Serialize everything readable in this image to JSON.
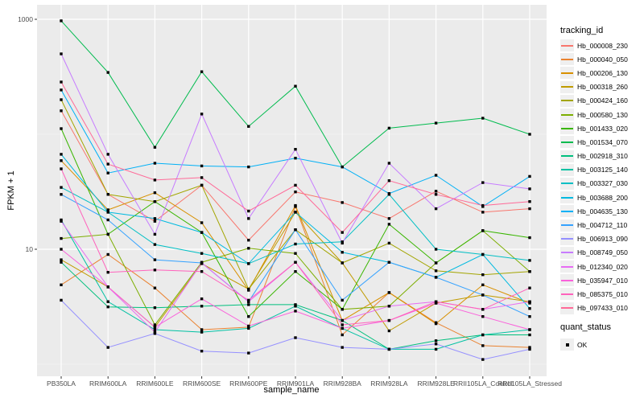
{
  "chart_data": {
    "type": "line",
    "title": "",
    "xlabel": "sample_name",
    "ylabel": "FPKM + 1",
    "y_scale": "log10",
    "ylim": [
      0.79,
      1340
    ],
    "grid": true,
    "legend_position": "right",
    "legend_title": "tracking_id",
    "x_categories": [
      "PB350LA",
      "RRIM600LA",
      "RRIM600LE",
      "RRIM600SE",
      "RRIM600PE",
      "RRIM901LA",
      "RRIM928BA",
      "RRIM928LA",
      "RRIM928LE",
      "RRII105LA_Control",
      "RRII105LA_Stressed"
    ],
    "y_ticks": [
      {
        "label": "1000",
        "value": 1000
      },
      {
        "label": "10",
        "value": 10
      }
    ],
    "y_minor_gridlines": [
      100,
      1
    ],
    "point_marker": "small-black-square",
    "point_color": "#000000",
    "series": [
      {
        "name": "Hb_000008_230",
        "color": "#F8766D",
        "values": [
          160,
          30,
          17.5,
          36,
          12,
          31.5,
          25.5,
          18.5,
          32,
          21,
          22.5
        ]
      },
      {
        "name": "Hb_000040_050",
        "color": "#EA8331",
        "values": [
          4.9,
          9,
          4.6,
          2.0,
          2.1,
          23.5,
          1.8,
          4.2,
          2.3,
          1.45,
          1.4
        ]
      },
      {
        "name": "Hb_000206_130",
        "color": "#D89000",
        "values": [
          59,
          22,
          31,
          17,
          4.4,
          24,
          2.4,
          4.2,
          2.25,
          4.9,
          3.4
        ]
      },
      {
        "name": "Hb_000318_260",
        "color": "#C09B00",
        "values": [
          8.1,
          4.7,
          2.1,
          7.5,
          4.5,
          21,
          7.6,
          1.95,
          3.4,
          4.0,
          3.5
        ]
      },
      {
        "name": "Hb_000424_160",
        "color": "#A3A500",
        "values": [
          200,
          30,
          26,
          36,
          4.5,
          14.8,
          7.6,
          11.3,
          6.5,
          6.0,
          6.4
        ]
      },
      {
        "name": "Hb_000580_130",
        "color": "#7CAE00",
        "values": [
          12.4,
          13.5,
          2.2,
          7.7,
          10.2,
          9.2,
          3.0,
          3.2,
          7.6,
          14.5,
          6.4
        ]
      },
      {
        "name": "Hb_001433_020",
        "color": "#39B600",
        "values": [
          112,
          13.5,
          26,
          14,
          2.6,
          6.4,
          3.0,
          16.5,
          7.6,
          14.5,
          12.6
        ]
      },
      {
        "name": "Hb_001534_070",
        "color": "#00BB4E",
        "values": [
          970,
          345,
          77,
          350,
          117,
          262,
          52,
          113,
          125,
          138,
          100
        ]
      },
      {
        "name": "Hb_002918_310",
        "color": "#00BF7D",
        "values": [
          7.7,
          3.15,
          3.1,
          3.2,
          3.3,
          3.3,
          2.4,
          1.35,
          1.6,
          1.8,
          1.8
        ]
      },
      {
        "name": "Hb_003125_140",
        "color": "#00C1A3",
        "values": [
          18,
          3.5,
          2.0,
          1.9,
          2.05,
          3.2,
          2.05,
          1.35,
          1.35,
          1.8,
          2.0
        ]
      },
      {
        "name": "Hb_003327_030",
        "color": "#00BFC4",
        "values": [
          34.5,
          21,
          11,
          9.2,
          7.5,
          11.1,
          11.6,
          30,
          10,
          9.0,
          8.0
        ]
      },
      {
        "name": "Hb_003688_200",
        "color": "#00BAE0",
        "values": [
          67,
          21,
          18.5,
          14,
          7.5,
          21,
          9.4,
          7.7,
          5.7,
          9.0,
          3.05
        ]
      },
      {
        "name": "Hb_004635_130",
        "color": "#00B0F6",
        "values": [
          243,
          46,
          56,
          53,
          52,
          62,
          52,
          30.5,
          44,
          23.5,
          43
        ]
      },
      {
        "name": "Hb_004712_110",
        "color": "#35A2FF",
        "values": [
          30,
          18,
          8.1,
          7.6,
          3.5,
          14.8,
          3.6,
          7.7,
          5.7,
          4.0,
          2.6
        ]
      },
      {
        "name": "Hb_006913_090",
        "color": "#9590FF",
        "values": [
          3.6,
          1.4,
          1.85,
          1.3,
          1.25,
          1.7,
          1.4,
          1.35,
          1.5,
          1.1,
          1.35
        ]
      },
      {
        "name": "Hb_008749_050",
        "color": "#C77CFF",
        "values": [
          500,
          67,
          13.5,
          150,
          18.5,
          74,
          11.3,
          56,
          22.5,
          38,
          33.5
        ]
      },
      {
        "name": "Hb_012340_020",
        "color": "#E76BF3",
        "values": [
          17.5,
          4.7,
          1.9,
          7.6,
          3.5,
          7.7,
          2.4,
          3.2,
          3.5,
          3.0,
          3.5
        ]
      },
      {
        "name": "Hb_035947_010",
        "color": "#FA62DB",
        "values": [
          10,
          4.7,
          2.1,
          3.7,
          2.15,
          2.9,
          2.05,
          2.4,
          3.4,
          2.6,
          2.0
        ]
      },
      {
        "name": "Hb_085375_010",
        "color": "#FF62BC",
        "values": [
          50,
          6.3,
          6.6,
          6.4,
          3.6,
          7.7,
          2.2,
          2.4,
          3.5,
          3.0,
          4.6
        ]
      },
      {
        "name": "Hb_097433_010",
        "color": "#FF6A98",
        "values": [
          285,
          55,
          40,
          42,
          21.5,
          36,
          14,
          39.5,
          30,
          24,
          26
        ]
      }
    ],
    "quant_legend": {
      "title": "quant_status",
      "items": [
        {
          "label": "OK"
        }
      ]
    }
  },
  "style": {
    "panel_bg": "#EBEBEB",
    "grid_major": "#FFFFFF",
    "grid_minor": "#FFFFFF",
    "tick_color": "#333333",
    "tick_label_color": "#4D4D4D",
    "legend_key_bg": "#EFEFEF"
  }
}
